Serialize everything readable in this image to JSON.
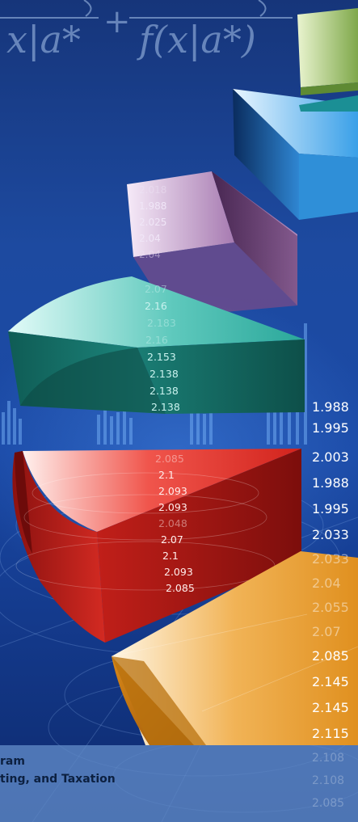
{
  "formula": {
    "top_line": "",
    "bottom_left": "x|a*",
    "plus": "+",
    "bottom_right": "f(x|a*)"
  },
  "slices": {
    "purple": [
      "2.018",
      "1.988",
      "2.025",
      "2.04",
      "2.04"
    ],
    "teal": [
      "2.07",
      "2.16",
      "2.183",
      "2.16",
      "2.153",
      "2.138",
      "2.138",
      "2.138"
    ],
    "red": [
      "2.085",
      "2.1",
      "2.093",
      "2.093",
      "2.048",
      "2.07",
      "2.1",
      "2.093",
      "2.085"
    ]
  },
  "side_column": [
    "1.988",
    "1.995",
    "2.003",
    "1.988",
    "1.995",
    "2.033",
    "2.033",
    "2.04",
    "2.055",
    "2.07",
    "2.085",
    "2.145",
    "2.145",
    "2.115",
    "2.108",
    "2.108",
    "2.085"
  ],
  "banner": {
    "line1": "ram",
    "line2": "ting, and Taxation"
  },
  "colors": {
    "background": "#1d4aa0",
    "green_slice": "#8fb65a",
    "blue_slice": "#3a9be0",
    "purple_slice": "#9a6aa3",
    "teal_slice": "#1f8d83",
    "red_slice": "#c3201b",
    "orange_slice": "#e0901f",
    "banner": "#608ac8"
  }
}
